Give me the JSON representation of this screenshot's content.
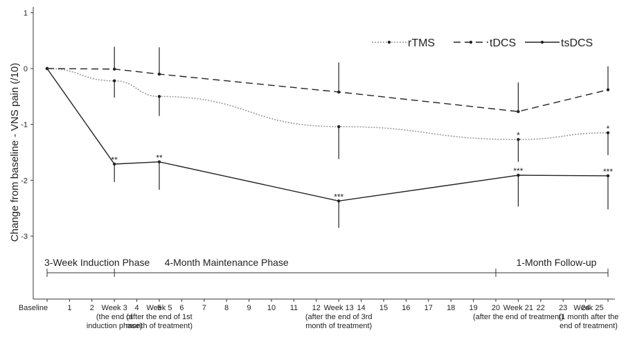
{
  "chart_data": {
    "type": "line",
    "ylabel": "Change from baseline - VNS pain (/10)",
    "ylim": [
      -3.9,
      1.1
    ],
    "yticks": [
      1,
      0,
      -1,
      -2,
      -3
    ],
    "xlim": [
      0,
      25
    ],
    "x_ticks": [
      "1",
      "2",
      "4",
      "5",
      "6",
      "7",
      "8",
      "9",
      "10",
      "11",
      "12",
      "14",
      "15",
      "16",
      "17",
      "18",
      "19",
      "20",
      "22",
      "23",
      "24"
    ],
    "x_tick_values": [
      1,
      2,
      4,
      5,
      6,
      7,
      8,
      9,
      10,
      11,
      12,
      14,
      15,
      16,
      17,
      18,
      19,
      20,
      22,
      23,
      24
    ],
    "x_labels": [
      {
        "x": 0,
        "lines": [
          "Baseline"
        ]
      },
      {
        "x": 3,
        "lines": [
          "Week 3",
          "(the end of",
          "induction phase)"
        ]
      },
      {
        "x": 5,
        "lines": [
          "Week 5",
          "(after the end of 1st",
          "month of treatment)"
        ]
      },
      {
        "x": 13,
        "lines": [
          "Week 13",
          "(after the end of 3rd",
          "month of treatment)"
        ]
      },
      {
        "x": 21,
        "lines": [
          "Week 21",
          "(after the end of treatment)"
        ]
      },
      {
        "x": 25,
        "lines": [
          "Week 25",
          "(1 month after the",
          "end of treatment)"
        ]
      }
    ],
    "x": [
      0,
      3,
      5,
      13,
      21,
      25
    ],
    "series": [
      {
        "name": "rTMS",
        "style": "dotted",
        "color": "#999999",
        "values": [
          0,
          -0.22,
          -0.5,
          -1.04,
          -1.27,
          -1.15
        ],
        "err_upper": [
          null,
          null,
          null,
          null,
          null,
          null
        ],
        "err_lower": [
          null,
          0.3,
          0.35,
          0.58,
          0.4,
          0.4
        ],
        "stars": [
          "",
          "",
          "",
          "",
          "*",
          "*"
        ]
      },
      {
        "name": "tDCS",
        "style": "dashed",
        "color": "#222222",
        "values": [
          0,
          -0.01,
          -0.1,
          -0.42,
          -0.77,
          -0.38
        ],
        "err_upper": [
          null,
          0.4,
          0.48,
          0.53,
          0.52,
          0.42
        ],
        "err_lower": [
          null,
          null,
          null,
          null,
          null,
          null
        ],
        "stars": [
          "",
          "",
          "",
          "",
          "",
          ""
        ]
      },
      {
        "name": "tsDCS",
        "style": "solid",
        "color": "#222222",
        "values": [
          0,
          -1.71,
          -1.67,
          -2.37,
          -1.91,
          -1.92
        ],
        "err_upper": [
          null,
          null,
          null,
          null,
          null,
          null
        ],
        "err_lower": [
          null,
          0.32,
          0.5,
          0.48,
          0.56,
          0.6
        ],
        "stars": [
          "",
          "**",
          "**",
          "***",
          "***",
          "***"
        ]
      }
    ],
    "legend_position": "top-right",
    "grid": false,
    "phases": [
      {
        "label": "3-Week Induction Phase",
        "from": 0,
        "to": 3
      },
      {
        "label": "4-Month Maintenance Phase",
        "from": 3,
        "to": 20
      },
      {
        "label": "1-Month Follow-up",
        "from": 20,
        "to": 25
      }
    ]
  }
}
